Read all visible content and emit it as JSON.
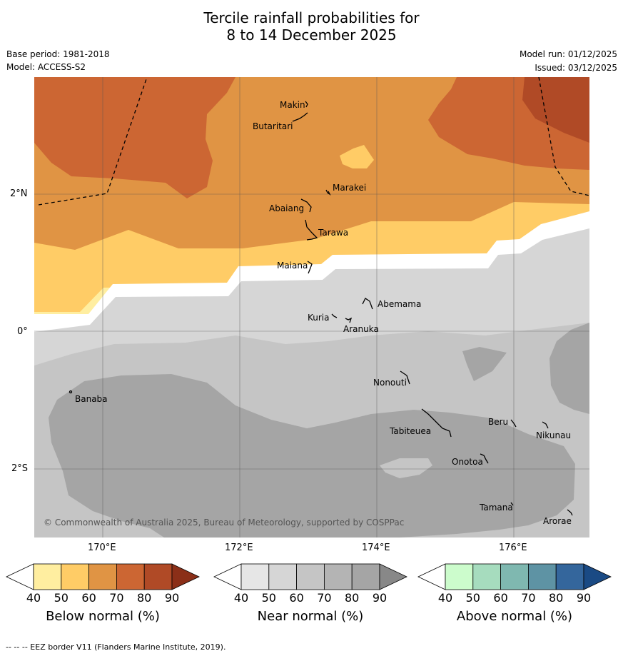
{
  "title": {
    "line1": "Tercile rainfall probabilities for",
    "line2": "8 to 14 December 2025"
  },
  "meta": {
    "base_period": "Base period: 1981-2018",
    "model": "Model: ACCESS-S2",
    "model_run": "Model run: 01/12/2025",
    "issued": "Issued: 03/12/2025"
  },
  "map": {
    "lat_labels": [
      "2°N",
      "0°",
      "2°S"
    ],
    "lon_labels": [
      "170°E",
      "172°E",
      "174°E",
      "176°E"
    ],
    "places": {
      "makin": "Makin",
      "butaritari": "Butaritari",
      "marakei": "Marakei",
      "abaiang": "Abaiang",
      "tarawa": "Tarawa",
      "maiana": "Maiana",
      "abemama": "Abemama",
      "kuria": "Kuria",
      "aranuka": "Aranuka",
      "nonouti": "Nonouti",
      "banaba": "Banaba",
      "beru": "Beru",
      "tabiteuea": "Tabiteuea",
      "nikunau": "Nikunau",
      "onotoa": "Onotoa",
      "tamana": "Tamana",
      "arorae": "Arorae"
    },
    "copyright": "© Commonwealth of Australia 2025, Bureau of Meteorology, supported by COSPPac"
  },
  "colorbars": [
    {
      "name": "below",
      "label": "Below normal (%)",
      "ticks": [
        "40",
        "50",
        "60",
        "70",
        "80",
        "90"
      ],
      "colors": [
        "#ffffff",
        "#ffeea0",
        "#ffcc66",
        "#e09444",
        "#cc6633",
        "#b04a26",
        "#8b2f18"
      ]
    },
    {
      "name": "near",
      "label": "Near normal (%)",
      "ticks": [
        "40",
        "50",
        "60",
        "70",
        "80",
        "90"
      ],
      "colors": [
        "#ffffff",
        "#e6e6e6",
        "#d6d6d6",
        "#c5c5c5",
        "#b4b4b4",
        "#a5a5a5",
        "#888888"
      ]
    },
    {
      "name": "above",
      "label": "Above normal (%)",
      "ticks": [
        "40",
        "50",
        "60",
        "70",
        "80",
        "90"
      ],
      "colors": [
        "#ffffff",
        "#ccfccc",
        "#a6dcbe",
        "#7fb8b0",
        "#5e93a4",
        "#34669c",
        "#1a4a84"
      ]
    }
  ],
  "footer": "-- -- -- EEZ border V11 (Flanders Marine Institute, 2019)."
}
